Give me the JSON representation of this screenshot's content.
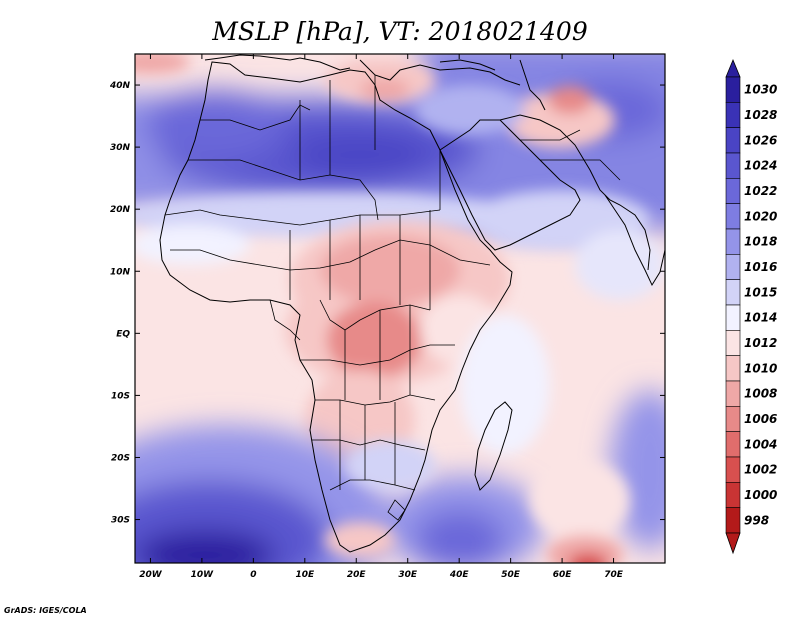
{
  "title": "MSLP [hPa], VT: 2018021409",
  "credit": "GrADS: IGES/COLA",
  "map": {
    "lon_range": [
      -23,
      80
    ],
    "lat_range": [
      -37,
      45
    ],
    "lon_ticks": [
      {
        "lon": -20,
        "label": "20W"
      },
      {
        "lon": -10,
        "label": "10W"
      },
      {
        "lon": 0,
        "label": "0"
      },
      {
        "lon": 10,
        "label": "10E"
      },
      {
        "lon": 20,
        "label": "20E"
      },
      {
        "lon": 30,
        "label": "30E"
      },
      {
        "lon": 40,
        "label": "40E"
      },
      {
        "lon": 50,
        "label": "50E"
      },
      {
        "lon": 60,
        "label": "60E"
      },
      {
        "lon": 70,
        "label": "70E"
      }
    ],
    "lat_ticks": [
      {
        "lat": 40,
        "label": "40N"
      },
      {
        "lat": 30,
        "label": "30N"
      },
      {
        "lat": 20,
        "label": "20N"
      },
      {
        "lat": 10,
        "label": "10N"
      },
      {
        "lat": 0,
        "label": "EQ"
      },
      {
        "lat": -10,
        "label": "10S"
      },
      {
        "lat": -20,
        "label": "20S"
      },
      {
        "lat": -30,
        "label": "30S"
      }
    ]
  },
  "colorbar": {
    "levels": [
      "1030",
      "1028",
      "1026",
      "1024",
      "1022",
      "1020",
      "1018",
      "1016",
      "1015",
      "1014",
      "1012",
      "1010",
      "1008",
      "1006",
      "1004",
      "1002",
      "1000",
      "998"
    ],
    "colors": [
      "#2a1f9e",
      "#3a32b6",
      "#4a44c4",
      "#5a56cf",
      "#6b68d9",
      "#7e7de2",
      "#9494e9",
      "#b1b2f0",
      "#d2d3f7",
      "#f2f2ff",
      "#fbe4e4",
      "#f6c7c6",
      "#efa8a7",
      "#e78a89",
      "#e06d6c",
      "#d8504f",
      "#c93434",
      "#b31a1a"
    ]
  },
  "pressure_fields": [
    {
      "name": "sahara-high",
      "lon": 12,
      "lat": 30,
      "value": 1024
    },
    {
      "name": "mediterranean-low",
      "lon": 22,
      "lat": 40,
      "value": 1011
    },
    {
      "name": "persia-low",
      "lon": 58,
      "lat": 35,
      "value": 1010
    },
    {
      "name": "sudan-low",
      "lon": 30,
      "lat": 12,
      "value": 1009
    },
    {
      "name": "congo-low",
      "lon": 24,
      "lat": -1,
      "value": 1008
    },
    {
      "name": "south-atlantic-high",
      "lon": -10,
      "lat": -32,
      "value": 1025
    },
    {
      "name": "south-indian-high",
      "lon": 42,
      "lat": -27,
      "value": 1020
    },
    {
      "name": "south-indian-low",
      "lon": 64,
      "lat": -37,
      "value": 1005
    }
  ]
}
